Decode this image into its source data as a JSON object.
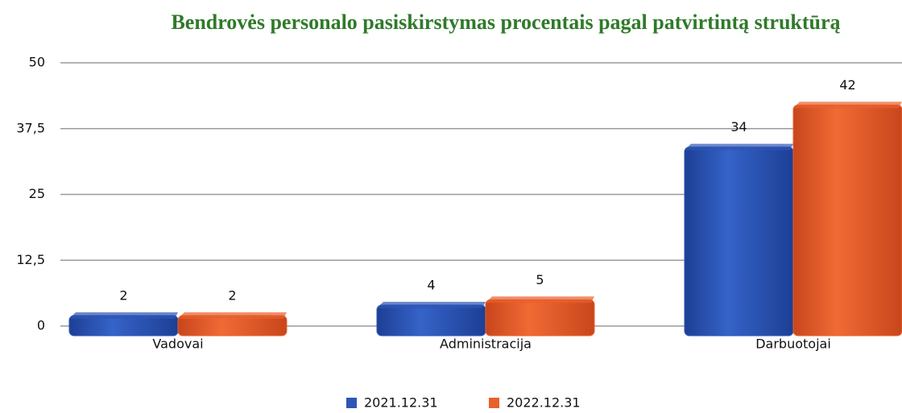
{
  "chart_data": {
    "type": "bar",
    "title": "Bendrovės personalo pasiskirstymas procentais pagal patvirtintą struktūrą",
    "categories": [
      "Vadovai",
      "Administracija",
      "Darbuotojai"
    ],
    "series": [
      {
        "name": "2021.12.31",
        "color": "#2d55b5",
        "values": [
          2,
          4,
          34
        ]
      },
      {
        "name": "2022.12.31",
        "color": "#e8602c",
        "values": [
          2,
          5,
          42
        ]
      }
    ],
    "ylim": [
      0,
      50
    ],
    "yticks": [
      0,
      {
        "value": 12.5,
        "label": "12,5"
      },
      25,
      {
        "value": 37.5,
        "label": "37,5"
      },
      50
    ],
    "grid": true
  }
}
